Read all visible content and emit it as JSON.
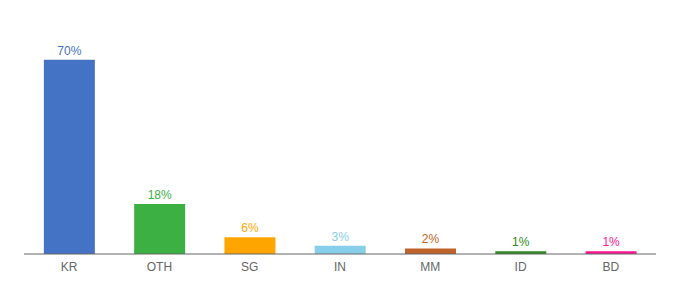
{
  "chart_data": {
    "type": "bar",
    "categories": [
      "KR",
      "OTH",
      "SG",
      "IN",
      "MM",
      "ID",
      "BD"
    ],
    "values": [
      70,
      18,
      6,
      3,
      2,
      1,
      1
    ],
    "value_labels": [
      "70%",
      "18%",
      "6%",
      "3%",
      "2%",
      "1%",
      "1%"
    ],
    "colors": [
      "#4472C4",
      "#3CB043",
      "#FFA500",
      "#87CEEB",
      "#C0632A",
      "#2E8B20",
      "#FF1493"
    ],
    "ylim": [
      0,
      80
    ],
    "data_labels": true,
    "tick_labels": "x",
    "grid": false
  }
}
